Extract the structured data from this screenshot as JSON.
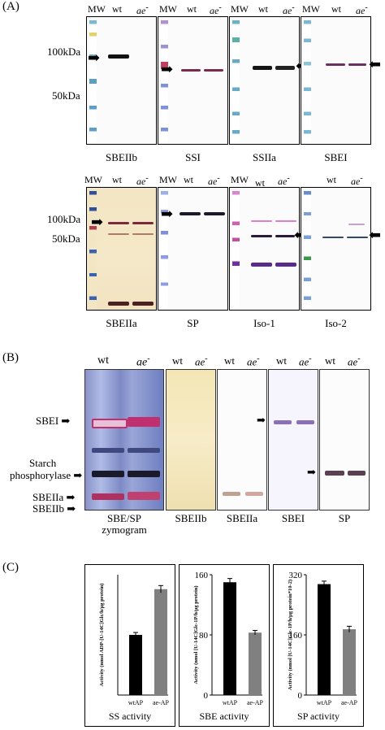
{
  "panelA": {
    "label": "(A)",
    "mw_label": "MW",
    "wt_label": "wt",
    "ae_label": "ae",
    "ae_sup": "-",
    "kda100": "100kDa",
    "kda50": "50kDa",
    "blots_top": [
      "SBEIIb",
      "SSI",
      "SSIIa",
      "SBEI"
    ],
    "blots_bottom": [
      "SBEIIa",
      "SP",
      "Iso-1",
      "Iso-2"
    ]
  },
  "panelB": {
    "label": "(B)",
    "wt_label": "wt",
    "ae_label": "ae",
    "ae_sup": "-",
    "left_labels": {
      "sbei": "SBEI",
      "sp_line1": "Starch",
      "sp_line2": "phosphorylase",
      "sbeiia": "SBEIIa",
      "sbeiib": "SBEIIb"
    },
    "captions": [
      "SBE/SP",
      "zymogram",
      "SBEIIb",
      "SBEIIa",
      "SBEI",
      "SP"
    ]
  },
  "panelC": {
    "label": "(C)",
    "chart_data": [
      {
        "type": "bar",
        "categories": [
          "wtAP",
          "ae-AP"
        ],
        "values": [
          5.0,
          8.8
        ],
        "errors": [
          0.2,
          0.3
        ],
        "ylim": [
          0,
          10
        ],
        "yticks": [],
        "ylabel": "Activity (nmol ADP-[U-14C]Glc/h/μg protein)",
        "xlabel": "SS activity",
        "colors": [
          "#000000",
          "#808080"
        ]
      },
      {
        "type": "bar",
        "categories": [
          "wtAP",
          "ae-AP"
        ],
        "values": [
          150,
          83
        ],
        "errors": [
          5,
          3
        ],
        "ylim": [
          0,
          160
        ],
        "yticks": [
          0,
          80,
          160
        ],
        "ylabel": "Activity (nmol [U-14C]Glc-1P/h/μg protein)",
        "xlabel": "SBE activity",
        "colors": [
          "#000000",
          "#808080"
        ]
      },
      {
        "type": "bar",
        "categories": [
          "wtAP",
          "ae-AP"
        ],
        "values": [
          295,
          175
        ],
        "errors": [
          8,
          8
        ],
        "ylim": [
          0,
          320
        ],
        "yticks": [
          0,
          160,
          320
        ],
        "ylabel": "Activity (nmol [U-14C]Glc-1P/h/μg protein*10-2)",
        "xlabel": "SP activity",
        "colors": [
          "#000000",
          "#808080"
        ]
      }
    ]
  }
}
